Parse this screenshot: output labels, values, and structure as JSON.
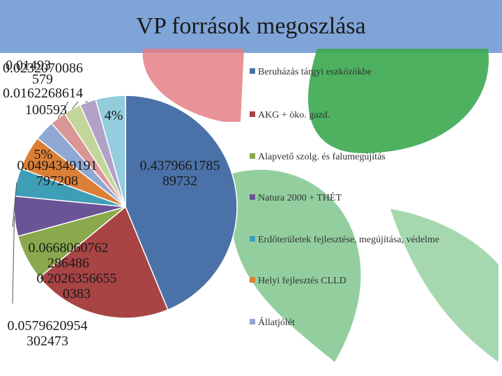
{
  "title": "VP források megoszlása",
  "colors": {
    "title_bar": "#7fa4d8",
    "deco_red": "#e57f85",
    "deco_green": "#3aa84f"
  },
  "chart_data": {
    "type": "pie",
    "title": "VP források megoszlása",
    "legend_position": "right",
    "series": [
      {
        "name": "Beruházás tárgyi eszközökbe",
        "value": 0.437966178589732,
        "label": "0.4379661785 89732",
        "color": "#4a72a8"
      },
      {
        "name": "AKG + öko. gazd.",
        "value": 0.2026356655,
        "label": "0.2026356655 0383",
        "color": "#a84444"
      },
      {
        "name": "Alapvető szolg. és falumegújítás",
        "value": 0.0668060762,
        "label": "0.0668060762 286486",
        "color": "#8aa84d"
      },
      {
        "name": "Natura 2000 + THÉT",
        "value": 0.0579620954,
        "label": "0.0579620954 302473",
        "color": "#6a5496"
      },
      {
        "name": "Erdőterületek fejlesztése, megújítása, védelme",
        "value": 0.0405,
        "label": "",
        "color": "#3d9eb5"
      },
      {
        "name": "Helyi fejlesztés CLLD",
        "value": 0.0494349191,
        "label": "5% 0.0494349191 797208",
        "color": "#db7f37"
      },
      {
        "name": "Állatjólét",
        "value": 0.0295,
        "label": "",
        "color": "#8fa8d3"
      },
      {
        "name": "",
        "value": 0.0232,
        "label": "",
        "color": "#d99695"
      },
      {
        "name": "",
        "value": 0.0253,
        "label": "",
        "color": "#c2d69b"
      },
      {
        "name": "",
        "value": 0.0236,
        "label": "",
        "color": "#b3a2c7"
      },
      {
        "name": "",
        "value": 0.0431,
        "label": "4%",
        "color": "#93cddd"
      }
    ],
    "overlap_labels": [
      "0.0232070086",
      "0.01493",
      "579",
      "0.0162268614",
      "100593"
    ]
  }
}
